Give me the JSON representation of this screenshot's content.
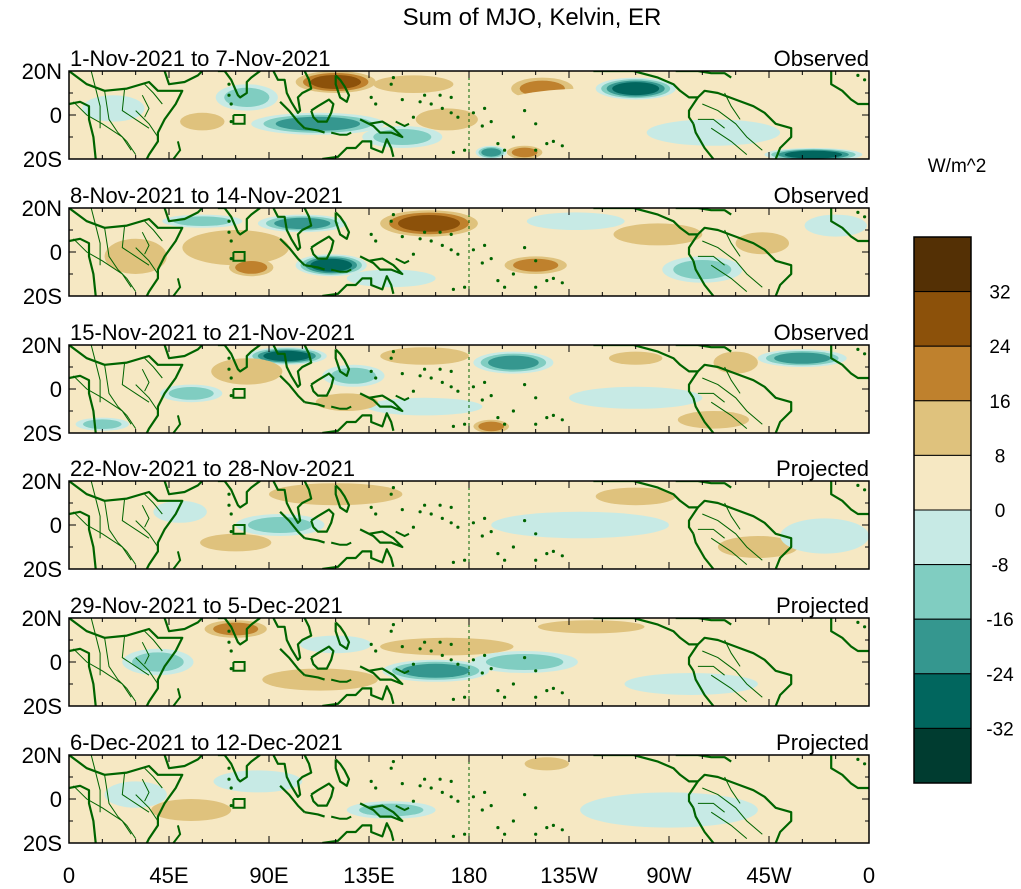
{
  "chart_data": {
    "type": "heatmap",
    "title": "Sum of MJO, Kelvin, ER",
    "colorbar": {
      "unit": "W/m^2",
      "labels": [
        "32",
        "24",
        "16",
        "8",
        "0",
        "-8",
        "-16",
        "-24",
        "-32"
      ],
      "colors": [
        "#543005",
        "#8c510a",
        "#bf812d",
        "#dfc27d",
        "#f6e8c3",
        "#c7eae5",
        "#80cdc1",
        "#35978f",
        "#01665e",
        "#003c30"
      ]
    },
    "x_axis": {
      "labels": [
        "0",
        "45E",
        "90E",
        "135E",
        "180",
        "135W",
        "90W",
        "45W",
        "0"
      ],
      "range_deg": [
        0,
        360
      ]
    },
    "y_axis": {
      "labels": [
        "20N",
        "0",
        "20S"
      ],
      "range_deg": [
        -20,
        20
      ]
    },
    "panels": [
      {
        "date_range": "1-Nov-2021 to 7-Nov-2021",
        "status": "Observed",
        "anomalies": [
          {
            "lon": 120,
            "lat": 15,
            "value": 26,
            "rlon": 18,
            "rlat": 5
          },
          {
            "lon": 213,
            "lat": 12,
            "value": 22,
            "rlon": 14,
            "rlat": 5
          },
          {
            "lon": 155,
            "lat": 14,
            "value": 10,
            "rlon": 18,
            "rlat": 4
          },
          {
            "lon": 170,
            "lat": -2,
            "value": 14,
            "rlon": 14,
            "rlat": 5
          },
          {
            "lon": 60,
            "lat": -3,
            "value": 12,
            "rlon": 10,
            "rlat": 4
          },
          {
            "lon": 205,
            "lat": -17,
            "value": 20,
            "rlon": 8,
            "rlat": 3
          },
          {
            "lon": 235,
            "lat": 5,
            "value": 6,
            "rlon": 40,
            "rlat": 7
          },
          {
            "lon": 30,
            "lat": 12,
            "value": 6,
            "rlon": 16,
            "rlat": 6
          },
          {
            "lon": 255,
            "lat": 12,
            "value": -30,
            "rlon": 18,
            "rlat": 5
          },
          {
            "lon": 112,
            "lat": -4,
            "value": -18,
            "rlon": 30,
            "rlat": 5
          },
          {
            "lon": 80,
            "lat": 8,
            "value": -14,
            "rlon": 14,
            "rlat": 6
          },
          {
            "lon": 190,
            "lat": -17,
            "value": -22,
            "rlon": 7,
            "rlat": 3
          },
          {
            "lon": 335,
            "lat": -18,
            "value": -26,
            "rlon": 22,
            "rlat": 3
          },
          {
            "lon": 290,
            "lat": -8,
            "value": -8,
            "rlon": 30,
            "rlat": 6
          },
          {
            "lon": 150,
            "lat": -10,
            "value": -10,
            "rlon": 18,
            "rlat": 5
          },
          {
            "lon": 20,
            "lat": 3,
            "value": -8,
            "rlon": 14,
            "rlat": 6
          }
        ]
      },
      {
        "date_range": "8-Nov-2021 to 14-Nov-2021",
        "status": "Observed",
        "anomalies": [
          {
            "lon": 162,
            "lat": 13,
            "value": 28,
            "rlon": 22,
            "rlat": 6
          },
          {
            "lon": 75,
            "lat": 2,
            "value": 14,
            "rlon": 24,
            "rlat": 8
          },
          {
            "lon": 82,
            "lat": -7,
            "value": 22,
            "rlon": 10,
            "rlat": 4
          },
          {
            "lon": 210,
            "lat": -6,
            "value": 16,
            "rlon": 14,
            "rlat": 4
          },
          {
            "lon": 265,
            "lat": 8,
            "value": 10,
            "rlon": 20,
            "rlat": 5
          },
          {
            "lon": 30,
            "lat": -2,
            "value": 8,
            "rlon": 14,
            "rlat": 8
          },
          {
            "lon": 312,
            "lat": 4,
            "value": 8,
            "rlon": 12,
            "rlat": 5
          },
          {
            "lon": 118,
            "lat": -6,
            "value": -26,
            "rlon": 16,
            "rlat": 5
          },
          {
            "lon": 105,
            "lat": 13,
            "value": -18,
            "rlon": 20,
            "rlat": 4
          },
          {
            "lon": 60,
            "lat": 14,
            "value": -10,
            "rlon": 18,
            "rlat": 3
          },
          {
            "lon": 285,
            "lat": -8,
            "value": -10,
            "rlon": 18,
            "rlat": 6
          },
          {
            "lon": 228,
            "lat": 14,
            "value": -8,
            "rlon": 22,
            "rlat": 4
          },
          {
            "lon": 345,
            "lat": 12,
            "value": -8,
            "rlon": 14,
            "rlat": 5
          },
          {
            "lon": 145,
            "lat": -12,
            "value": -8,
            "rlon": 20,
            "rlat": 4
          }
        ]
      },
      {
        "date_range": "15-Nov-2021 to 21-Nov-2021",
        "status": "Observed",
        "anomalies": [
          {
            "lon": 200,
            "lat": 12,
            "value": -24,
            "rlon": 18,
            "rlat": 5
          },
          {
            "lon": 98,
            "lat": 15,
            "value": -26,
            "rlon": 18,
            "rlat": 4
          },
          {
            "lon": 128,
            "lat": 6,
            "value": -12,
            "rlon": 14,
            "rlat": 5
          },
          {
            "lon": 55,
            "lat": -2,
            "value": -12,
            "rlon": 14,
            "rlat": 4
          },
          {
            "lon": 330,
            "lat": 14,
            "value": -20,
            "rlon": 20,
            "rlat": 4
          },
          {
            "lon": 255,
            "lat": -4,
            "value": -8,
            "rlon": 30,
            "rlat": 5
          },
          {
            "lon": 160,
            "lat": -8,
            "value": -8,
            "rlon": 26,
            "rlat": 4
          },
          {
            "lon": 15,
            "lat": -16,
            "value": -10,
            "rlon": 12,
            "rlat": 3
          },
          {
            "lon": 160,
            "lat": 15,
            "value": 12,
            "rlon": 20,
            "rlat": 4
          },
          {
            "lon": 190,
            "lat": -17,
            "value": 20,
            "rlon": 8,
            "rlat": 3
          },
          {
            "lon": 125,
            "lat": -6,
            "value": 10,
            "rlon": 14,
            "rlat": 4
          },
          {
            "lon": 80,
            "lat": 8,
            "value": 8,
            "rlon": 16,
            "rlat": 6
          },
          {
            "lon": 300,
            "lat": 12,
            "value": 12,
            "rlon": 10,
            "rlat": 5
          },
          {
            "lon": 290,
            "lat": -14,
            "value": 8,
            "rlon": 16,
            "rlat": 4
          },
          {
            "lon": 255,
            "lat": 14,
            "value": 12,
            "rlon": 12,
            "rlat": 3
          }
        ]
      },
      {
        "date_range": "22-Nov-2021 to 28-Nov-2021",
        "status": "Projected",
        "anomalies": [
          {
            "lon": 120,
            "lat": 14,
            "value": 8,
            "rlon": 30,
            "rlat": 5
          },
          {
            "lon": 255,
            "lat": 13,
            "value": 14,
            "rlon": 18,
            "rlat": 4
          },
          {
            "lon": 75,
            "lat": -8,
            "value": 10,
            "rlon": 16,
            "rlat": 4
          },
          {
            "lon": 160,
            "lat": -6,
            "value": 6,
            "rlon": 30,
            "rlat": 5
          },
          {
            "lon": 310,
            "lat": -10,
            "value": 10,
            "rlon": 18,
            "rlat": 5
          },
          {
            "lon": 95,
            "lat": 0,
            "value": -12,
            "rlon": 20,
            "rlat": 5
          },
          {
            "lon": 50,
            "lat": 6,
            "value": -8,
            "rlon": 12,
            "rlat": 5
          },
          {
            "lon": 230,
            "lat": 0,
            "value": -8,
            "rlon": 40,
            "rlat": 6
          },
          {
            "lon": 340,
            "lat": -5,
            "value": -6,
            "rlon": 20,
            "rlat": 8
          }
        ]
      },
      {
        "date_range": "29-Nov-2021 to 5-Dec-2021",
        "status": "Projected",
        "anomalies": [
          {
            "lon": 75,
            "lat": 15,
            "value": 22,
            "rlon": 14,
            "rlat": 4
          },
          {
            "lon": 113,
            "lat": -8,
            "value": 12,
            "rlon": 26,
            "rlat": 5
          },
          {
            "lon": 170,
            "lat": 7,
            "value": 8,
            "rlon": 30,
            "rlat": 4
          },
          {
            "lon": 235,
            "lat": 16,
            "value": 8,
            "rlon": 24,
            "rlat": 3
          },
          {
            "lon": 15,
            "lat": 8,
            "value": 6,
            "rlon": 12,
            "rlat": 5
          },
          {
            "lon": 165,
            "lat": -4,
            "value": -22,
            "rlon": 24,
            "rlat": 5
          },
          {
            "lon": 40,
            "lat": 0,
            "value": -10,
            "rlon": 16,
            "rlat": 6
          },
          {
            "lon": 205,
            "lat": 0,
            "value": -10,
            "rlon": 24,
            "rlat": 5
          },
          {
            "lon": 120,
            "lat": 8,
            "value": -8,
            "rlon": 16,
            "rlat": 4
          },
          {
            "lon": 280,
            "lat": -10,
            "value": -6,
            "rlon": 30,
            "rlat": 5
          }
        ]
      },
      {
        "date_range": "6-Dec-2021 to 12-Dec-2021",
        "status": "Projected",
        "anomalies": [
          {
            "lon": 55,
            "lat": -5,
            "value": 8,
            "rlon": 18,
            "rlat": 5
          },
          {
            "lon": 120,
            "lat": -14,
            "value": 6,
            "rlon": 22,
            "rlat": 3
          },
          {
            "lon": 160,
            "lat": 12,
            "value": 6,
            "rlon": 30,
            "rlat": 5
          },
          {
            "lon": 215,
            "lat": 16,
            "value": 10,
            "rlon": 10,
            "rlat": 3
          },
          {
            "lon": 330,
            "lat": 8,
            "value": 6,
            "rlon": 26,
            "rlat": 6
          },
          {
            "lon": 145,
            "lat": -5,
            "value": -10,
            "rlon": 20,
            "rlat": 4
          },
          {
            "lon": 85,
            "lat": 8,
            "value": -6,
            "rlon": 20,
            "rlat": 5
          },
          {
            "lon": 270,
            "lat": -5,
            "value": -6,
            "rlon": 40,
            "rlat": 8
          },
          {
            "lon": 30,
            "lat": 2,
            "value": -6,
            "rlon": 14,
            "rlat": 6
          }
        ]
      }
    ]
  }
}
